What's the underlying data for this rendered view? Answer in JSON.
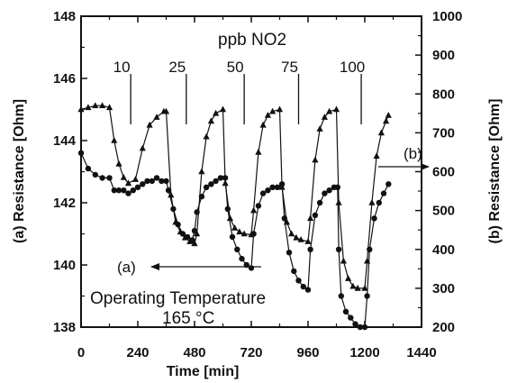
{
  "chart_data": {
    "type": "line",
    "xlabel": "Time [min]",
    "ylabel_left": "(a) Resistance [Ohm]",
    "ylabel_right": "(b) Resistance [Ohm]",
    "xlim": [
      0,
      1440
    ],
    "ylim_left": [
      138,
      148
    ],
    "ylim_right": [
      200,
      1000
    ],
    "x_ticks": [
      0,
      240,
      480,
      720,
      960,
      1200,
      1440
    ],
    "y_left_ticks": [
      138,
      140,
      142,
      144,
      146,
      148
    ],
    "y_right_ticks": [
      200,
      300,
      400,
      500,
      600,
      700,
      800,
      900,
      1000
    ],
    "grid": false,
    "series": [
      {
        "name": "(a)",
        "axis": "left",
        "marker": "circle",
        "x": [
          0,
          30,
          60,
          90,
          120,
          140,
          160,
          180,
          200,
          220,
          240,
          260,
          280,
          300,
          320,
          340,
          360,
          370,
          390,
          410,
          430,
          450,
          470,
          480,
          490,
          510,
          530,
          550,
          570,
          590,
          610,
          620,
          640,
          660,
          680,
          700,
          720,
          730,
          750,
          770,
          790,
          810,
          830,
          850,
          860,
          880,
          900,
          920,
          940,
          960,
          970,
          990,
          1010,
          1030,
          1050,
          1070,
          1085,
          1090,
          1100,
          1120,
          1140,
          1160,
          1180,
          1200,
          1210,
          1220,
          1240,
          1260,
          1280,
          1300
        ],
        "y": [
          143.6,
          143.1,
          142.9,
          142.8,
          142.8,
          142.4,
          142.4,
          142.4,
          142.3,
          142.4,
          142.5,
          142.6,
          142.7,
          142.7,
          142.8,
          142.7,
          142.7,
          142.4,
          141.8,
          141.3,
          141.0,
          140.9,
          140.8,
          141.1,
          141.7,
          142.2,
          142.5,
          142.6,
          142.7,
          142.8,
          142.8,
          141.8,
          140.9,
          140.5,
          140.2,
          140.0,
          139.9,
          141.0,
          141.9,
          142.3,
          142.4,
          142.5,
          142.5,
          142.6,
          141.5,
          140.4,
          139.8,
          139.5,
          139.3,
          139.2,
          140.5,
          141.6,
          142.0,
          142.3,
          142.4,
          142.5,
          142.5,
          140.5,
          139.0,
          138.5,
          138.3,
          138.1,
          138.0,
          138.0,
          139.0,
          140.5,
          141.5,
          142.0,
          142.3,
          142.6
        ]
      },
      {
        "name": "(b)",
        "axis": "right",
        "marker": "triangle",
        "x": [
          0,
          30,
          60,
          90,
          120,
          140,
          160,
          180,
          200,
          230,
          260,
          290,
          320,
          350,
          360,
          380,
          400,
          420,
          440,
          460,
          480,
          490,
          510,
          530,
          550,
          570,
          600,
          610,
          630,
          650,
          670,
          690,
          720,
          730,
          750,
          770,
          790,
          810,
          840,
          850,
          870,
          890,
          910,
          930,
          960,
          970,
          990,
          1010,
          1030,
          1050,
          1080,
          1090,
          1110,
          1130,
          1150,
          1170,
          1200,
          1210,
          1230,
          1250,
          1270,
          1290,
          1300
        ],
        "y": [
          760,
          765,
          770,
          770,
          765,
          680,
          620,
          585,
          570,
          580,
          660,
          720,
          740,
          755,
          755,
          540,
          470,
          445,
          430,
          420,
          415,
          440,
          600,
          690,
          730,
          750,
          760,
          570,
          480,
          455,
          445,
          440,
          438,
          500,
          650,
          720,
          745,
          755,
          760,
          560,
          470,
          440,
          430,
          425,
          420,
          480,
          630,
          710,
          740,
          755,
          760,
          520,
          370,
          325,
          305,
          300,
          300,
          370,
          520,
          640,
          700,
          730,
          745
        ]
      }
    ],
    "annotations": {
      "title": "ppb NO2",
      "concentrations": [
        {
          "label": "10",
          "at": 210
        },
        {
          "label": "25",
          "at": 445
        },
        {
          "label": "50",
          "at": 690
        },
        {
          "label": "75",
          "at": 920
        },
        {
          "label": "100",
          "at": 1185
        }
      ],
      "arrow_a": "(a)",
      "arrow_b": "(b)",
      "op_temp_line1": "Operating Temperature",
      "op_temp_line2": "165 °C"
    }
  }
}
